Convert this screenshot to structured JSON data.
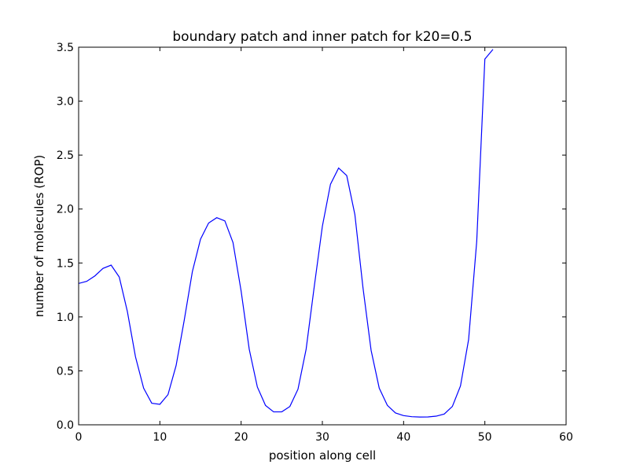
{
  "chart_data": {
    "type": "line",
    "title": "boundary patch and inner patch for k20=0.5",
    "xlabel": "position along cell",
    "ylabel": "number of molecules (ROP)",
    "xlim": [
      0,
      60
    ],
    "ylim": [
      0,
      3.5
    ],
    "xticks": [
      0,
      10,
      20,
      30,
      40,
      50,
      60
    ],
    "xtick_labels": [
      "0",
      "10",
      "20",
      "30",
      "40",
      "50",
      "60"
    ],
    "yticks": [
      0,
      0.5,
      1.0,
      1.5,
      2.0,
      2.5,
      3.0,
      3.5
    ],
    "ytick_labels": [
      "0.0",
      "0.5",
      "1.0",
      "1.5",
      "2.0",
      "2.5",
      "3.0",
      "3.5"
    ],
    "grid": false,
    "series": [
      {
        "color": "#0000ff",
        "x": [
          0,
          1,
          2,
          3,
          4,
          5,
          6,
          7,
          8,
          9,
          10,
          11,
          12,
          13,
          14,
          15,
          16,
          17,
          18,
          19,
          20,
          21,
          22,
          23,
          24,
          25,
          26,
          27,
          28,
          29,
          30,
          31,
          32,
          33,
          34,
          35,
          36,
          37,
          38,
          39,
          40,
          41,
          42,
          43,
          44,
          45,
          46,
          47,
          48,
          49,
          50,
          51
        ],
        "y": [
          1.31,
          1.33,
          1.38,
          1.45,
          1.48,
          1.37,
          1.05,
          0.63,
          0.34,
          0.2,
          0.19,
          0.28,
          0.55,
          0.97,
          1.42,
          1.72,
          1.87,
          1.92,
          1.89,
          1.69,
          1.24,
          0.7,
          0.35,
          0.18,
          0.12,
          0.12,
          0.17,
          0.33,
          0.7,
          1.28,
          1.84,
          2.23,
          2.38,
          2.31,
          1.95,
          1.27,
          0.69,
          0.34,
          0.18,
          0.11,
          0.085,
          0.075,
          0.072,
          0.073,
          0.08,
          0.1,
          0.17,
          0.36,
          0.79,
          1.7,
          3.39,
          3.48
        ]
      }
    ]
  }
}
